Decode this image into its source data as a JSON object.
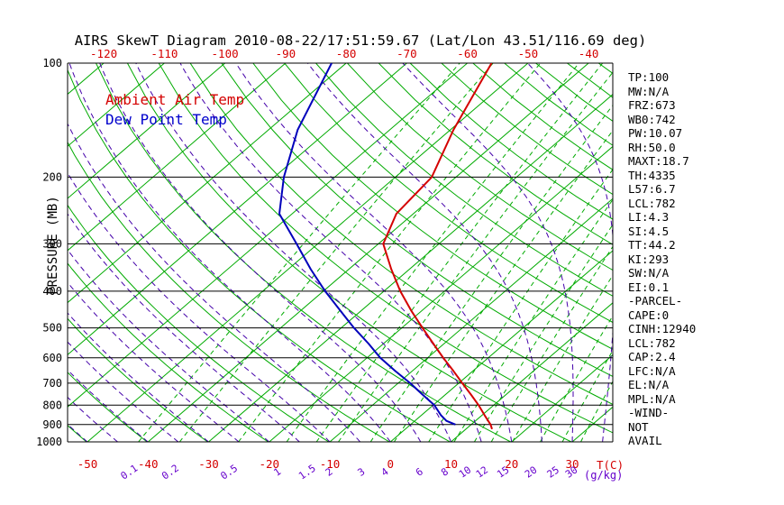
{
  "title": "AIRS SkewT Diagram 2010-08-22/17:51:59.67 (Lat/Lon 43.51/116.69 deg)",
  "legend": {
    "temp_label": "Ambient Air Temp",
    "dewpoint_label": "Dew Point Temp"
  },
  "axes": {
    "y_label": "PRESSURE (MB)",
    "pressure_ticks": [
      100,
      200,
      300,
      400,
      500,
      600,
      700,
      800,
      900,
      1000
    ],
    "top_temp_ticks": [
      -120,
      -110,
      -100,
      -90,
      -80,
      -70,
      -60,
      -50,
      -40
    ],
    "bottom_temp_ticks": [
      -50,
      -40,
      -30,
      -20,
      -10,
      0,
      10,
      20,
      30
    ],
    "temp_unit": "T(C)",
    "mixing_ratio_ticks": [
      "0.1",
      "0.2",
      "0.5",
      "1",
      "1.5",
      "2",
      "3",
      "4",
      "6",
      "8",
      "10",
      "12",
      "15",
      "20",
      "25",
      "30"
    ],
    "mixing_unit": "(g/kg)"
  },
  "stats": {
    "lines": [
      "TP:100",
      "MW:N/A",
      "FRZ:673",
      "WB0:742",
      "PW:10.07",
      "RH:50.0",
      "MAXT:18.7",
      "TH:4335",
      "L57:6.7",
      "LCL:782",
      "LI:4.3",
      "SI:4.5",
      "TT:44.2",
      "KI:293",
      "SW:N/A",
      "EI:0.1",
      "-PARCEL-",
      "CAPE:0",
      "CINH:12940",
      "LCL:782",
      "CAP:2.4",
      "LFC:N/A",
      "EL:N/A",
      "MPL:N/A",
      "-WIND-",
      "NOT",
      "AVAIL"
    ]
  },
  "colors": {
    "isotherm": "#00aa00",
    "dry_adiabat": "#00aa00",
    "mixing_ratio": "#00aa00",
    "moist_adiabat": "#4400aa",
    "pressure_line": "#000000",
    "axis_red": "#d40000",
    "axis_purple": "#6600cc",
    "temp_profile": "#d40000",
    "dewpoint_profile": "#0000bb"
  },
  "chart_data": {
    "type": "line",
    "subtype": "skewt-logp-sounding",
    "title": "AIRS SkewT Diagram 2010-08-22/17:51:59.67 (Lat/Lon 43.51/116.69 deg)",
    "xlabel": "T(C)",
    "ylabel": "PRESSURE (MB)",
    "pressure_range_mb": [
      100,
      1000
    ],
    "surface_temp_axis_range_c": [
      -50,
      30
    ],
    "top_temp_axis_range_c": [
      -120,
      -40
    ],
    "isotherm_step_c": 10,
    "y_scale": "log",
    "grid": true,
    "legend_position": "top-left",
    "series": [
      {
        "name": "Ambient Air Temp",
        "color": "#d40000",
        "pressure_mb": [
          100,
          150,
          200,
          250,
          300,
          350,
          400,
          450,
          500,
          550,
          600,
          650,
          700,
          750,
          800,
          850,
          900,
          925
        ],
        "temp_c": [
          -56,
          -49.5,
          -44,
          -42.8,
          -39.2,
          -33,
          -27.3,
          -21.8,
          -16.6,
          -11.8,
          -7.4,
          -3.2,
          0.6,
          4.2,
          7.5,
          10.4,
          13.2,
          14.3
        ]
      },
      {
        "name": "Dew Point Temp",
        "color": "#0000bb",
        "pressure_mb": [
          100,
          150,
          200,
          250,
          300,
          350,
          400,
          450,
          500,
          550,
          600,
          650,
          700,
          750,
          800,
          850,
          880,
          900
        ],
        "temp_c": [
          -82.4,
          -75.2,
          -68.4,
          -62.1,
          -53.5,
          -46.3,
          -39.7,
          -33.5,
          -27.9,
          -22.5,
          -17.8,
          -12.8,
          -8.0,
          -3.8,
          0.2,
          3.2,
          5.2,
          7.4
        ]
      }
    ]
  }
}
